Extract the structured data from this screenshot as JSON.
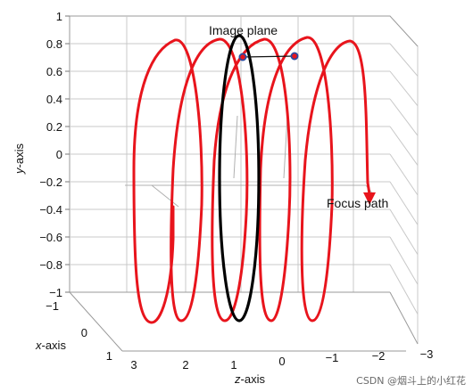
{
  "figure": {
    "y_axis": {
      "label_var": "y",
      "label_suffix": "-axis",
      "ticks": [
        "1",
        "0.8",
        "0.6",
        "0.4",
        "0.2",
        "0",
        "−0.2",
        "−0.4",
        "−0.6",
        "−0.8",
        "−1"
      ]
    },
    "x_axis": {
      "label_var": "x",
      "label_suffix": "-axis",
      "ticks": [
        "−1",
        "0",
        "1"
      ]
    },
    "z_axis": {
      "label_var": "z",
      "label_suffix": "-axis",
      "ticks": [
        "3",
        "2",
        "1",
        "0",
        "−1",
        "−2",
        "−3"
      ]
    },
    "annotations": {
      "image_plane": "Image plane",
      "focus_path": "Focus path"
    },
    "watermark": "CSDN @烟斗上的小红花",
    "colors": {
      "focus_path": "#e8141c",
      "image_plane": "#000000",
      "markers": "#2b4aa0",
      "grid": "#c8c8c8",
      "box": "#9a9a9a"
    }
  }
}
